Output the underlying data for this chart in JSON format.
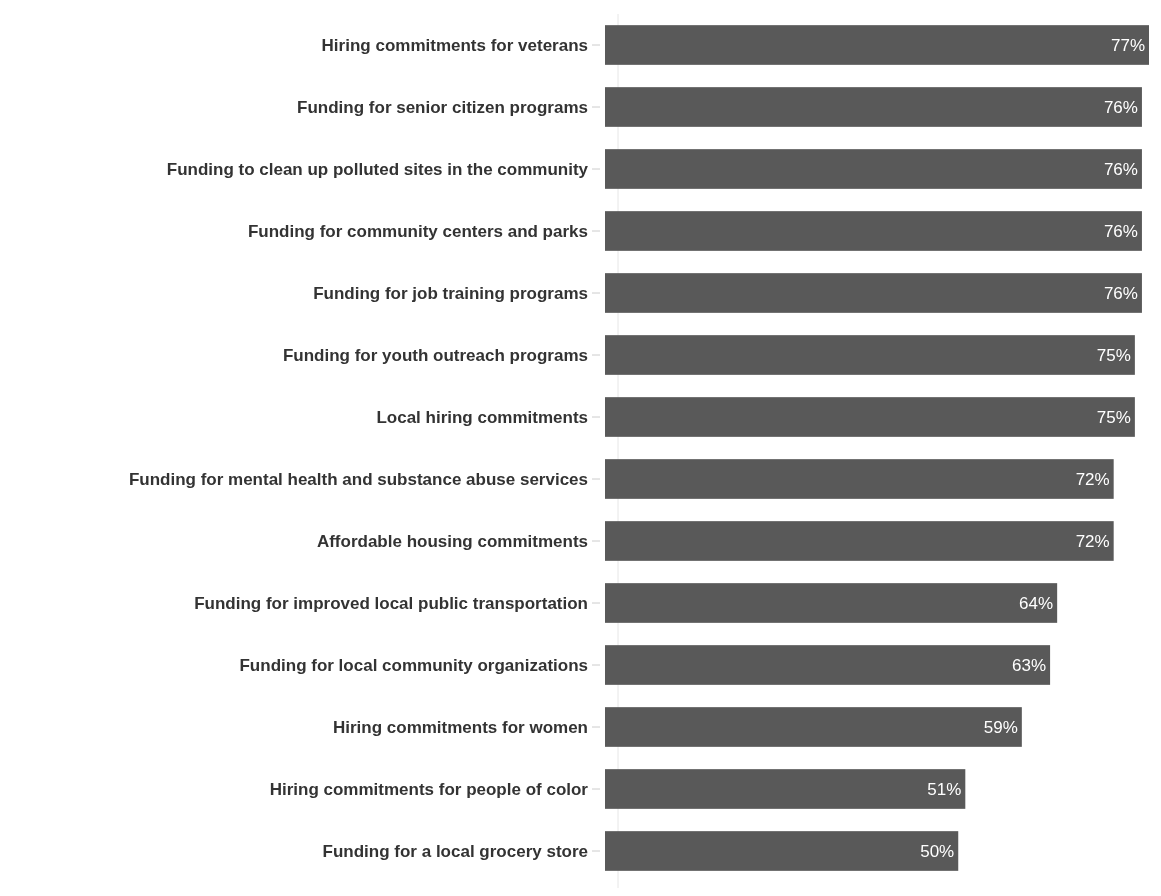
{
  "chart_data": {
    "type": "bar",
    "orientation": "horizontal",
    "color": "#595959",
    "value_labels": [
      "77%",
      "76%",
      "76%",
      "76%",
      "76%",
      "75%",
      "75%",
      "72%",
      "72%",
      "64%",
      "63%",
      "59%",
      "51%",
      "50%"
    ],
    "categories": [
      "Hiring commitments for veterans",
      "Funding for senior citizen programs",
      "Funding to clean up polluted sites in the community",
      "Funding for community centers and parks",
      "Funding for job training programs",
      "Funding for youth outreach programs",
      "Local hiring commitments",
      "Funding for mental health and substance abuse services",
      "Affordable housing commitments",
      "Funding for improved local public transportation",
      "Funding for local community organizations",
      "Hiring commitments for women",
      "Hiring commitments for people of color",
      "Funding for a local grocery store"
    ],
    "values": [
      77,
      76,
      76,
      76,
      76,
      75,
      75,
      72,
      72,
      64,
      63,
      59,
      51,
      50
    ]
  }
}
